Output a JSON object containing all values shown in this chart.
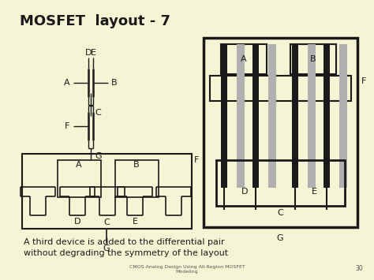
{
  "title": "MOSFET  layout - 7",
  "background_color": "#f5f5d5",
  "line_color": "#1a1a1a",
  "gray_color": "#b0b0b0",
  "text_color": "#1a1a1a",
  "caption_line1": "A third device is added to the differential pair",
  "caption_line2": "without degrading the symmetry of the layout",
  "footer": "CMOS Analog Design Using All-Region MOSFET\nModeling",
  "page_number": "30"
}
